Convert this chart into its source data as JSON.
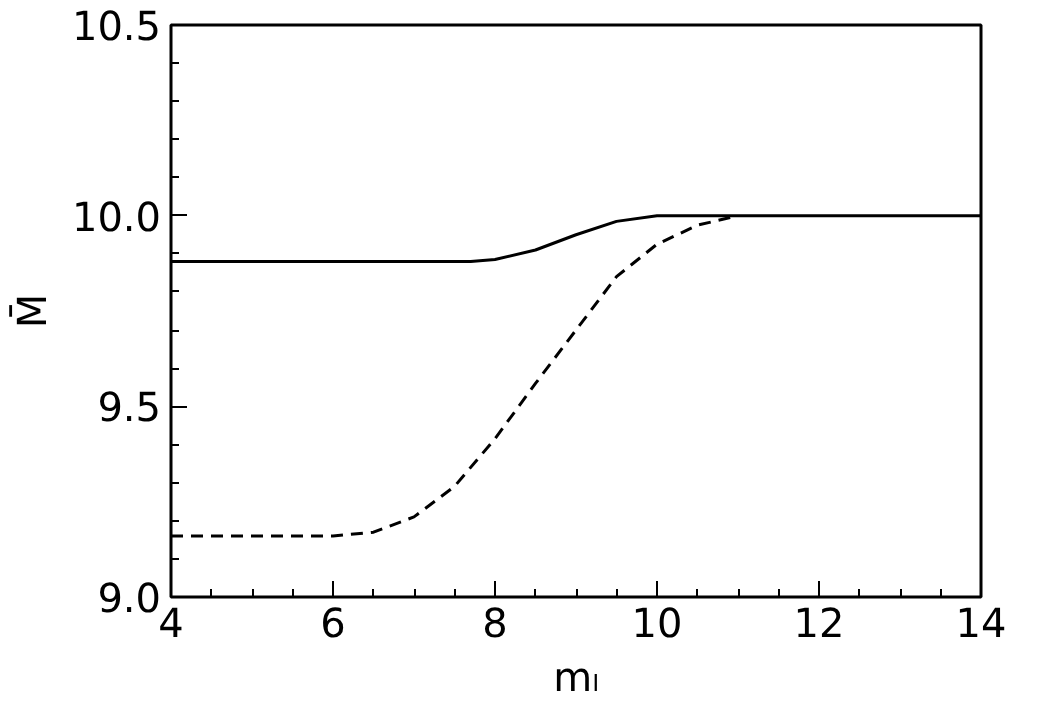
{
  "chart_data": {
    "type": "line",
    "xlabel": "mₗ",
    "ylabel": "M̄",
    "xlim": [
      4,
      14
    ],
    "ylim": [
      9.0,
      10.5
    ],
    "xticks": [
      4,
      6,
      8,
      10,
      12,
      14
    ],
    "yticks": [
      {
        "value": 9.0,
        "label": "9.0"
      },
      {
        "value": 9.5,
        "label": "9.5"
      },
      {
        "value": 10.0,
        "label": "10.0"
      },
      {
        "value": 10.5,
        "label": "10.5"
      }
    ],
    "series": [
      {
        "color": "#000000",
        "line_style": "solid",
        "x": [
          4,
          7.7,
          8.0,
          8.5,
          9.0,
          9.5,
          10.0,
          14
        ],
        "values": [
          9.88,
          9.88,
          9.885,
          9.91,
          9.95,
          9.985,
          10.0,
          10.0
        ]
      },
      {
        "color": "#000000",
        "line_style": "dashed",
        "x": [
          4,
          6,
          6.5,
          7.0,
          7.5,
          8.0,
          8.5,
          9.0,
          9.5,
          10.0,
          10.5,
          11.0
        ],
        "values": [
          9.16,
          9.16,
          9.17,
          9.21,
          9.29,
          9.415,
          9.56,
          9.7,
          9.84,
          9.925,
          9.975,
          10.0
        ]
      }
    ]
  }
}
